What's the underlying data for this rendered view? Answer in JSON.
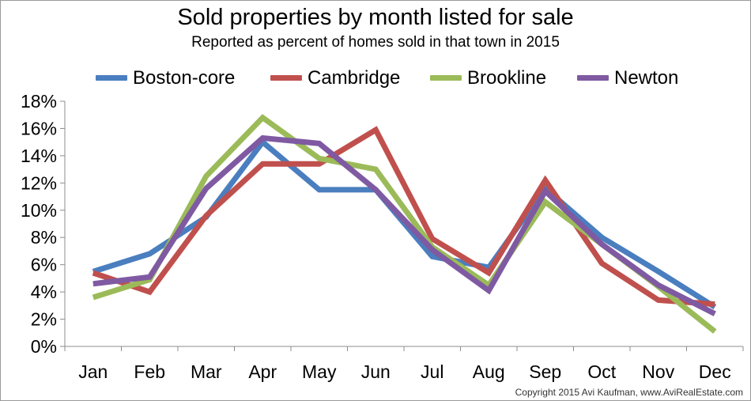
{
  "chart_data": {
    "type": "line",
    "title": "Sold properties by month listed for sale",
    "subtitle": "Reported as percent of homes sold in that town in 2015",
    "xlabel": "",
    "ylabel": "",
    "categories": [
      "Jan",
      "Feb",
      "Mar",
      "Apr",
      "May",
      "Jun",
      "Jul",
      "Aug",
      "Sep",
      "Oct",
      "Nov",
      "Dec"
    ],
    "ylim": [
      0,
      18
    ],
    "yticks": [
      0,
      2,
      4,
      6,
      8,
      10,
      12,
      14,
      16,
      18
    ],
    "ytick_labels": [
      "0%",
      "2%",
      "4%",
      "6%",
      "8%",
      "10%",
      "12%",
      "14%",
      "16%",
      "18%"
    ],
    "grid": false,
    "legend_position": "top",
    "series": [
      {
        "name": "Boston-core",
        "color": "#4a7ebf",
        "values": [
          5.5,
          6.8,
          9.5,
          15.0,
          11.5,
          11.5,
          6.6,
          5.8,
          11.6,
          8.0,
          5.5,
          2.9
        ]
      },
      {
        "name": "Cambridge",
        "color": "#c0504d",
        "values": [
          5.4,
          4.0,
          9.6,
          13.4,
          13.4,
          15.9,
          7.9,
          5.4,
          12.2,
          6.1,
          3.4,
          3.1
        ]
      },
      {
        "name": "Brookline",
        "color": "#9bbb59",
        "values": [
          3.6,
          4.9,
          12.5,
          16.8,
          13.8,
          13.0,
          7.3,
          4.5,
          10.6,
          7.5,
          4.4,
          1.1
        ]
      },
      {
        "name": "Newton",
        "color": "#7f5aa2",
        "values": [
          4.6,
          5.1,
          11.6,
          15.3,
          14.9,
          11.5,
          7.1,
          4.1,
          11.4,
          7.5,
          4.5,
          2.4
        ]
      }
    ]
  },
  "copyright": "Copyright 2015 Avi Kaufman, www.AviRealEstate.com"
}
